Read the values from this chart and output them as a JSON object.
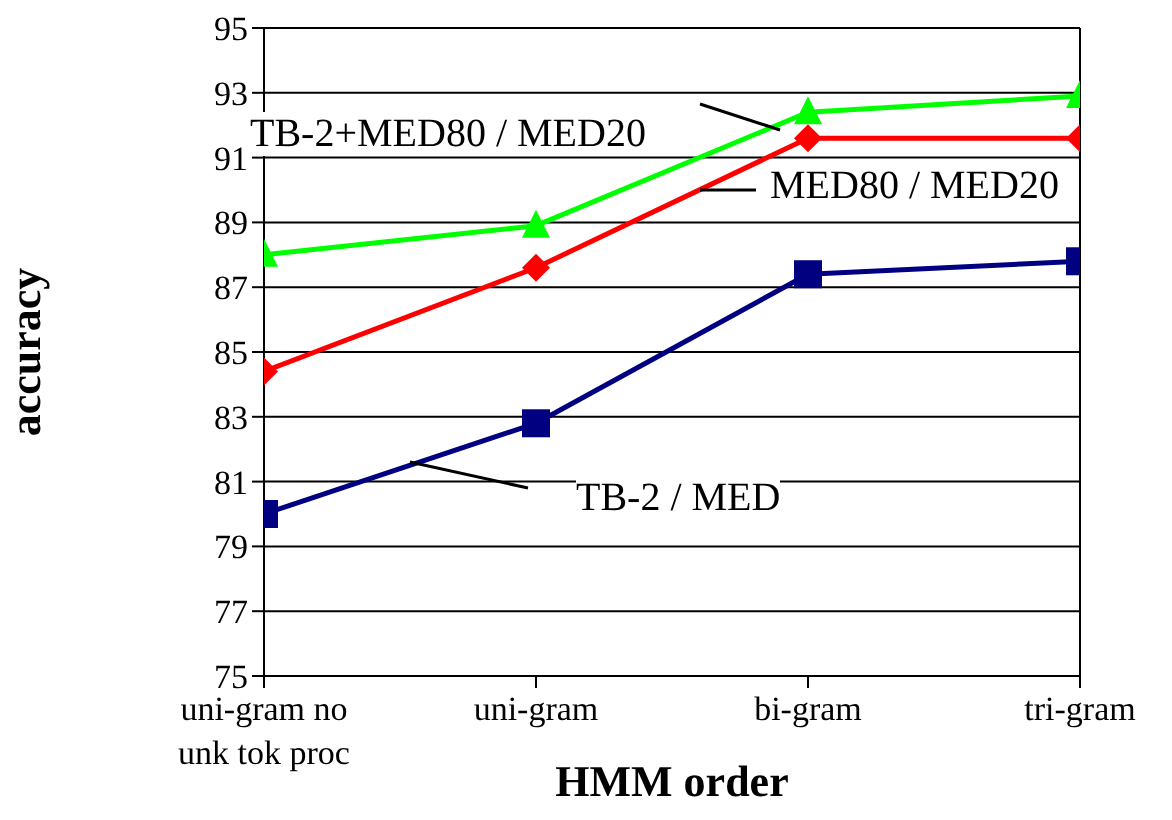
{
  "chart_data": {
    "type": "line",
    "xlabel": "HMM order",
    "ylabel": "accuracy",
    "categories": [
      "uni-gram no unk tok proc",
      "uni-gram",
      "bi-gram",
      "tri-gram"
    ],
    "series": [
      {
        "name": "TB-2+MED80 / MED20",
        "color": "#00ff00",
        "marker": "triangle",
        "values": [
          88.0,
          88.9,
          92.4,
          92.9
        ]
      },
      {
        "name": "MED80 / MED20",
        "color": "#ff0000",
        "marker": "diamond",
        "values": [
          84.4,
          87.6,
          91.6,
          91.6
        ]
      },
      {
        "name": "TB-2 / MED",
        "color": "#000080",
        "marker": "square",
        "values": [
          80.0,
          82.8,
          87.4,
          87.8
        ]
      }
    ],
    "ylim": [
      75,
      95
    ],
    "yticks": [
      75,
      77,
      79,
      81,
      83,
      85,
      87,
      89,
      91,
      93,
      95
    ],
    "grid": "y"
  }
}
